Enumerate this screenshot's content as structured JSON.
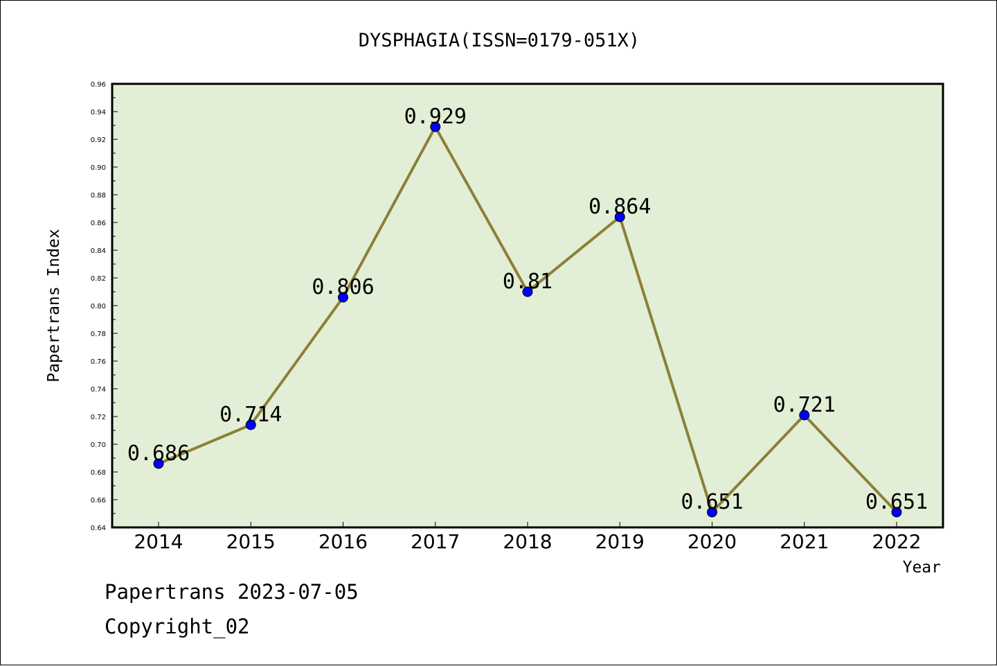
{
  "footer": {
    "credit": "Papertrans 2023-07-05",
    "copyright": "Copyright_02"
  },
  "chart_data": {
    "type": "line",
    "title": "DYSPHAGIA(ISSN=0179-051X)",
    "xlabel": "Year",
    "ylabel": "Papertrans Index",
    "categories": [
      "2014",
      "2015",
      "2016",
      "2017",
      "2018",
      "2019",
      "2020",
      "2021",
      "2022"
    ],
    "values": [
      0.686,
      0.714,
      0.806,
      0.929,
      0.81,
      0.864,
      0.651,
      0.721,
      0.651
    ],
    "data_labels": [
      "0.686",
      "0.714",
      "0.806",
      "0.929",
      "0.81",
      "0.864",
      "0.651",
      "0.721",
      "0.651"
    ],
    "ylim": [
      0.64,
      0.96
    ],
    "ytick_labels": [
      "0.64",
      "0.66",
      "0.68",
      "0.70",
      "0.72",
      "0.74",
      "0.76",
      "0.78",
      "0.80",
      "0.82",
      "0.84",
      "0.86",
      "0.88",
      "0.90",
      "0.92",
      "0.94",
      "0.96"
    ],
    "grid": false,
    "colors": {
      "plot_background": "#e2efd6",
      "line": "#8c8037",
      "marker": "#0000ff"
    }
  }
}
